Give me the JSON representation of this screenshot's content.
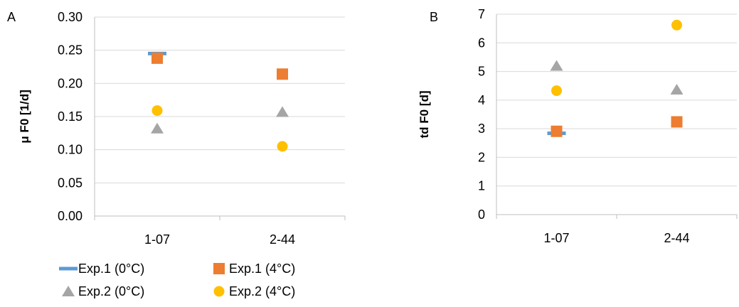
{
  "chart_data": [
    {
      "type": "scatter",
      "panel": "A",
      "title": "",
      "xlabel": "",
      "ylabel": "μ F0 [1/d]",
      "categories": [
        "1-07",
        "2-44"
      ],
      "ylim": [
        0,
        0.3
      ],
      "yticks": [
        "0.00",
        "0.05",
        "0.10",
        "0.15",
        "0.20",
        "0.25",
        "0.30"
      ],
      "grid": true,
      "series": [
        {
          "name": "Exp.1 (0°C)",
          "marker": "dash",
          "color": "#5B9BD5",
          "values": [
            0.245,
            null
          ]
        },
        {
          "name": "Exp.1 (4°C)",
          "marker": "square",
          "color": "#ED7D31",
          "values": [
            0.238,
            0.214
          ]
        },
        {
          "name": "Exp.2 (0°C)",
          "marker": "triangle",
          "color": "#A5A5A5",
          "values": [
            0.132,
            0.157
          ]
        },
        {
          "name": "Exp.2 (4°C)",
          "marker": "circle",
          "color": "#FFC000",
          "values": [
            0.159,
            0.105
          ]
        }
      ]
    },
    {
      "type": "scatter",
      "panel": "B",
      "title": "",
      "xlabel": "",
      "ylabel": "td F0 [d]",
      "categories": [
        "1-07",
        "2-44"
      ],
      "ylim": [
        0,
        7
      ],
      "yticks": [
        "0",
        "1",
        "2",
        "3",
        "4",
        "5",
        "6",
        "7"
      ],
      "grid": true,
      "series": [
        {
          "name": "Exp.1 (0°C)",
          "marker": "dash",
          "color": "#5B9BD5",
          "values": [
            2.84,
            null
          ]
        },
        {
          "name": "Exp.1 (4°C)",
          "marker": "square",
          "color": "#ED7D31",
          "values": [
            2.91,
            3.24
          ]
        },
        {
          "name": "Exp.2 (0°C)",
          "marker": "triangle",
          "color": "#A5A5A5",
          "values": [
            5.2,
            4.37
          ]
        },
        {
          "name": "Exp.2 (4°C)",
          "marker": "circle",
          "color": "#FFC000",
          "values": [
            4.33,
            6.62
          ]
        }
      ]
    }
  ],
  "legend": {
    "position": "bottom-left",
    "items": [
      {
        "label": "Exp.1 (0°C)",
        "marker": "dash",
        "color": "#5B9BD5"
      },
      {
        "label": "Exp.1 (4°C)",
        "marker": "square",
        "color": "#ED7D31"
      },
      {
        "label": "Exp.2 (0°C)",
        "marker": "triangle",
        "color": "#A5A5A5"
      },
      {
        "label": "Exp.2 (4°C)",
        "marker": "circle",
        "color": "#FFC000"
      }
    ]
  },
  "colors": {
    "gridline": "#D9D9D9",
    "axis": "#BFBFBF"
  }
}
